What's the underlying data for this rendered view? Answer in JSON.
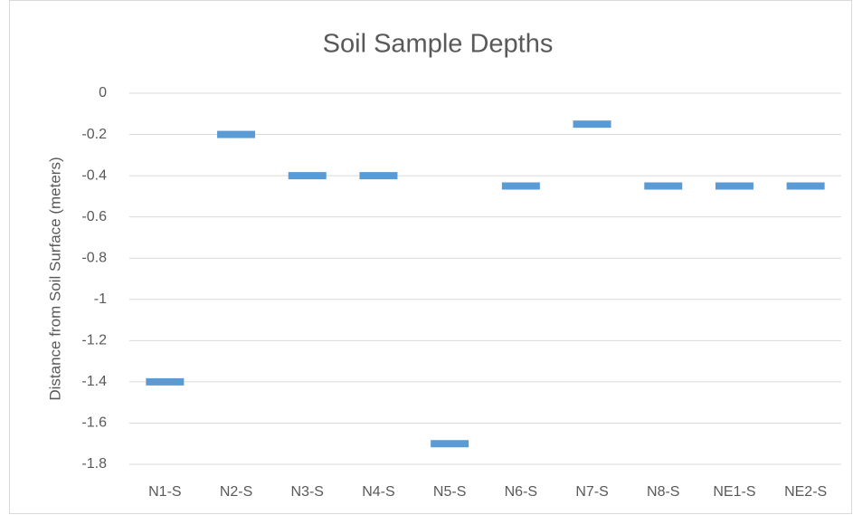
{
  "chart_data": {
    "type": "dash",
    "title": "Soil Sample Depths",
    "y_label": "Distance from Soil Surface (meters)",
    "categories": [
      "N1-S",
      "N2-S",
      "N3-S",
      "N4-S",
      "N5-S",
      "N6-S",
      "N7-S",
      "N8-S",
      "NE1-S",
      "NE2-S"
    ],
    "values": [
      -1.4,
      -0.2,
      -0.4,
      -0.4,
      -1.7,
      -0.45,
      -0.15,
      -0.45,
      -0.45,
      -0.45
    ],
    "color": "#5b9bd5",
    "ylim": [
      -1.8,
      0
    ],
    "yticks": [
      0,
      -0.2,
      -0.4,
      -0.6,
      -0.8,
      -1,
      -1.2,
      -1.4,
      -1.6,
      -1.8
    ],
    "grid": true
  }
}
